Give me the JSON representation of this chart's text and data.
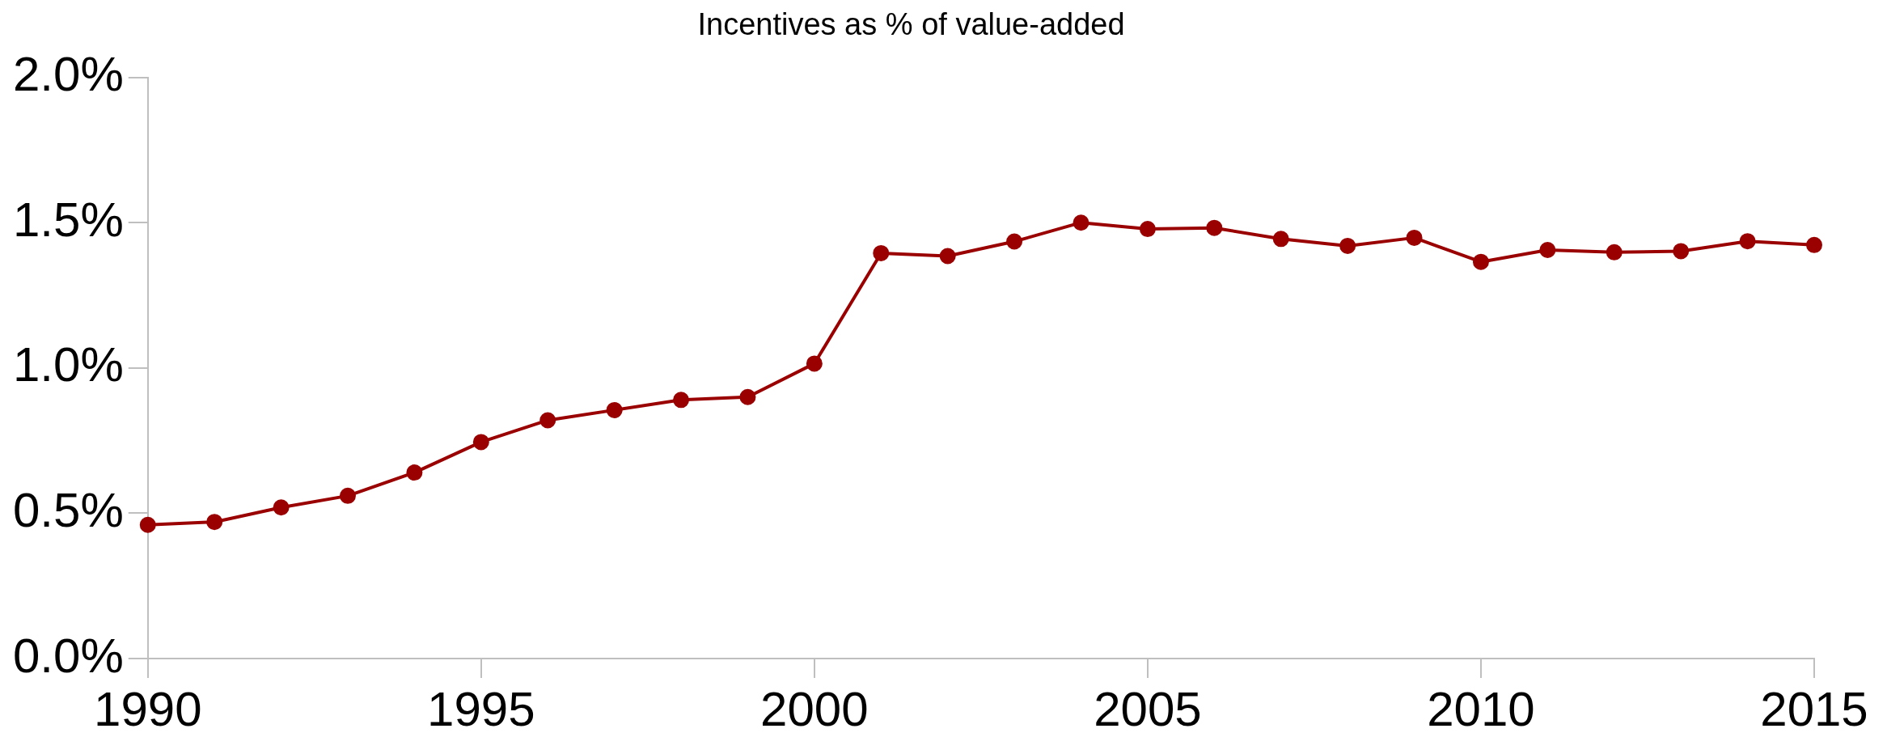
{
  "chart_data": {
    "type": "line",
    "title": "Incentives as % of value-added",
    "x": [
      1990,
      1991,
      1992,
      1993,
      1994,
      1995,
      1996,
      1997,
      1998,
      1999,
      2000,
      2001,
      2002,
      2003,
      2004,
      2005,
      2006,
      2007,
      2008,
      2009,
      2010,
      2011,
      2012,
      2013,
      2014,
      2015
    ],
    "series": [
      {
        "color": "#9b0000",
        "values": [
          0.46,
          0.47,
          0.52,
          0.56,
          0.64,
          0.745,
          0.82,
          0.855,
          0.89,
          0.9,
          1.015,
          1.395,
          1.385,
          1.435,
          1.5,
          1.478,
          1.482,
          1.444,
          1.42,
          1.448,
          1.365,
          1.406,
          1.398,
          1.402,
          1.436,
          1.423
        ]
      }
    ],
    "xlim": [
      1990,
      2015
    ],
    "xticks": [
      1990,
      1995,
      2000,
      2005,
      2010,
      2015
    ],
    "ylim": [
      0,
      2
    ],
    "yticks": [
      {
        "value": 0,
        "label": "0.0%"
      },
      {
        "value": 0.5,
        "label": "0.5%"
      },
      {
        "value": 1,
        "label": "1.0%"
      },
      {
        "value": 1.5,
        "label": "1.5%"
      },
      {
        "value": 2,
        "label": "2.0%"
      }
    ],
    "grid": false,
    "legend": false,
    "marker": "circle",
    "line_style": "solid"
  }
}
